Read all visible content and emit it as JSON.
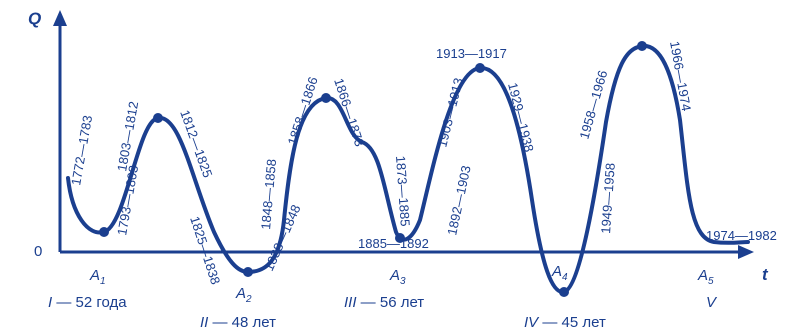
{
  "axes": {
    "y_label": "Q",
    "x_label": "t",
    "origin_label": "0"
  },
  "period_labels": [
    "1772—1783",
    "1803—1812",
    "1793—1803",
    "1812—1825",
    "1825—1838",
    "1838—1848",
    "1848—1858",
    "1858—1866",
    "1866—1873",
    "1873—1885",
    "1885—1892",
    "1892—1903",
    "1903—1913",
    "1913—1917",
    "1929—1938",
    "1949—1958",
    "1958—1966",
    "1966—1974",
    "1974—1982"
  ],
  "minima": [
    {
      "letter": "A",
      "index": "1"
    },
    {
      "letter": "A",
      "index": "2"
    },
    {
      "letter": "A",
      "index": "3"
    },
    {
      "letter": "A",
      "index": "4"
    },
    {
      "letter": "A",
      "index": "5"
    }
  ],
  "cycles": [
    {
      "roman": "I",
      "text": " — 52 года"
    },
    {
      "roman": "II",
      "text": " — 48 лет"
    },
    {
      "roman": "III",
      "text": " — 56 лет"
    },
    {
      "roman": "IV",
      "text": " — 45 лет"
    },
    {
      "roman": "V",
      "text": ""
    }
  ]
}
